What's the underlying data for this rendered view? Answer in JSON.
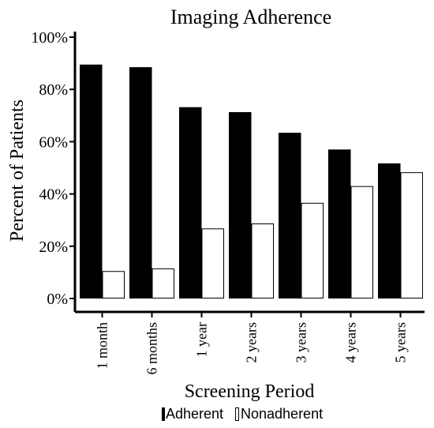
{
  "chart_data": {
    "type": "bar",
    "title": "Imaging Adherence",
    "xlabel": "Screening Period",
    "ylabel": "Percent of Patients",
    "categories": [
      "1 month",
      "6 months",
      "1 year",
      "2 years",
      "3 years",
      "4 years",
      "5 years"
    ],
    "series": [
      {
        "name": "Adherent",
        "color": "#000000",
        "values": [
          89.5,
          88.5,
          73.2,
          71.3,
          63.4,
          57.0,
          51.7
        ]
      },
      {
        "name": "Nonadherent",
        "color": "#ffffff",
        "values": [
          10.5,
          11.5,
          26.8,
          28.7,
          36.6,
          43.0,
          48.3
        ]
      }
    ],
    "ylim": [
      0,
      100
    ],
    "yticks": [
      0,
      20,
      40,
      60,
      80,
      100
    ],
    "ytick_labels": [
      "0%",
      "20%",
      "40%",
      "60%",
      "80%",
      "100%"
    ],
    "grid": false,
    "legend_position": "bottom"
  }
}
